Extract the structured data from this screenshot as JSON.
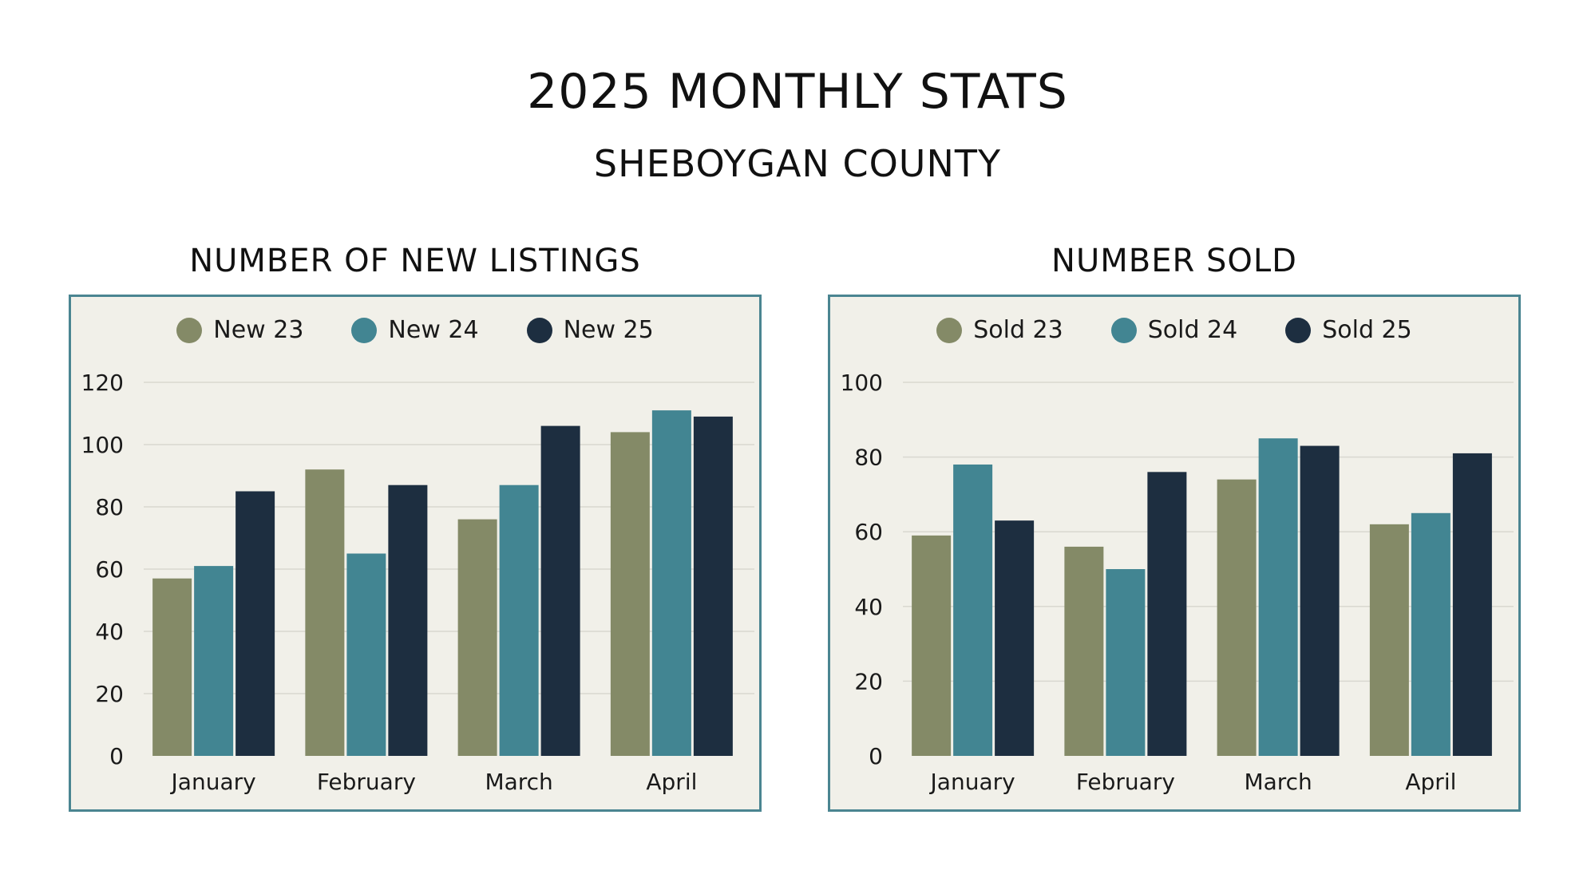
{
  "header": {
    "title": "2025 MONTHLY STATS",
    "subtitle": "SHEBOYGAN COUNTY"
  },
  "colors": {
    "olive": "#848a67",
    "teal": "#428592",
    "navy": "#1d2e40",
    "panel_bg": "#f1f0e9",
    "panel_border": "#4a8591",
    "grid": "#d9d8d0"
  },
  "chart_data": [
    {
      "type": "bar",
      "title": "NUMBER OF NEW LISTINGS",
      "categories": [
        "January",
        "February",
        "March",
        "April"
      ],
      "series": [
        {
          "name": "New 23",
          "values": [
            57,
            92,
            76,
            104
          ]
        },
        {
          "name": "New 24",
          "values": [
            61,
            65,
            87,
            111
          ]
        },
        {
          "name": "New 25",
          "values": [
            85,
            87,
            106,
            109
          ]
        }
      ],
      "yticks": [
        "0",
        "20",
        "40",
        "60",
        "80",
        "100",
        "120"
      ],
      "ylim": [
        0,
        120
      ],
      "grid": true,
      "legend": "top-center"
    },
    {
      "type": "bar",
      "title": "NUMBER SOLD",
      "categories": [
        "January",
        "February",
        "March",
        "April"
      ],
      "series": [
        {
          "name": "Sold 23",
          "values": [
            59,
            56,
            74,
            62
          ]
        },
        {
          "name": "Sold 24",
          "values": [
            78,
            50,
            85,
            65
          ]
        },
        {
          "name": "Sold 25",
          "values": [
            63,
            76,
            83,
            81
          ]
        }
      ],
      "yticks": [
        "0",
        "20",
        "40",
        "60",
        "80",
        "100"
      ],
      "ylim": [
        0,
        100
      ],
      "grid": true,
      "legend": "top-center"
    }
  ]
}
